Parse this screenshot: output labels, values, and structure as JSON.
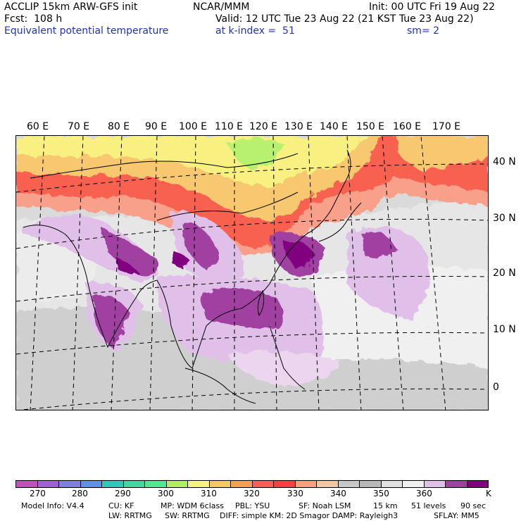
{
  "header": {
    "model": "ACCLIP 15km ARW-GFS init",
    "org": "NCAR/MMM",
    "init": "Init: 00 UTC Fri 19 Aug 22",
    "fcst": "Fcst:  108 h",
    "valid": "Valid: 12 UTC Tue 23 Aug 22 (21 KST Tue 23 Aug 22)",
    "field": "Equivalent potential temperature",
    "level": "at k-index =  51",
    "smooth": "sm= 2"
  },
  "map": {
    "lon_labels": [
      "60 E",
      "70 E",
      "80 E",
      "90 E",
      "100 E",
      "110 E",
      "120 E",
      "130 E",
      "140 E",
      "150 E",
      "160 E",
      "170 E"
    ],
    "lat_labels": [
      "40 N",
      "30 N",
      "20 N",
      "10 N",
      "0"
    ]
  },
  "colorbar": {
    "colors": [
      "#c050c0",
      "#a060d8",
      "#8080e0",
      "#6090e8",
      "#30c8b8",
      "#40d8a0",
      "#50e890",
      "#b0f060",
      "#f8f080",
      "#f8c860",
      "#f8a050",
      "#f86050",
      "#f84040",
      "#f8a080",
      "#f0c8a8",
      "#c8c8c8",
      "#b8b8b8",
      "#e0e0e0",
      "#f0f0f0",
      "#e0c0e8",
      "#a040a0",
      "#800080"
    ],
    "labels": [
      "270",
      "280",
      "290",
      "300",
      "310",
      "320",
      "330",
      "340",
      "350",
      "360"
    ],
    "unit": "K"
  },
  "footer": {
    "line1": [
      "Model Info: V4.4",
      "CU: KF",
      "MP: WDM 6class",
      "PBL: YSU",
      "SF: Noah LSM",
      "15 km",
      "51 levels",
      "90 sec"
    ],
    "line2": [
      "LW: RRTMG",
      "SW: RRTMG",
      "DIFF: simple KM: 2D Smagor DAMP: Rayleigh3",
      "SFLAY: MM5"
    ]
  }
}
